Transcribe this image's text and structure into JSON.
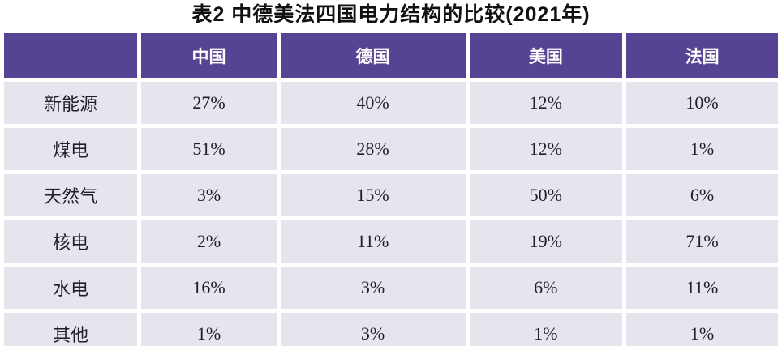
{
  "title": "表2 中德美法四国电力结构的比较(2021年)",
  "colors": {
    "header_bg": "#574394",
    "header_text": "#ffffff",
    "cell_bg": "#e7e4ed",
    "cell_text": "#1f1f27",
    "page_bg": "#ffffff"
  },
  "chart_data": {
    "type": "table",
    "title": "表2 中德美法四国电力结构的比较(2021年)",
    "columns": [
      "",
      "中国",
      "德国",
      "美国",
      "法国"
    ],
    "rows": [
      {
        "label": "新能源",
        "values": [
          "27%",
          "40%",
          "12%",
          "10%"
        ]
      },
      {
        "label": "煤电",
        "values": [
          "51%",
          "28%",
          "12%",
          "1%"
        ]
      },
      {
        "label": "天然气",
        "values": [
          "3%",
          "15%",
          "50%",
          "6%"
        ]
      },
      {
        "label": "核电",
        "values": [
          "2%",
          "11%",
          "19%",
          "71%"
        ]
      },
      {
        "label": "水电",
        "values": [
          "16%",
          "3%",
          "6%",
          "11%"
        ]
      },
      {
        "label": "其他",
        "values": [
          "1%",
          "3%",
          "1%",
          "1%"
        ]
      }
    ]
  }
}
